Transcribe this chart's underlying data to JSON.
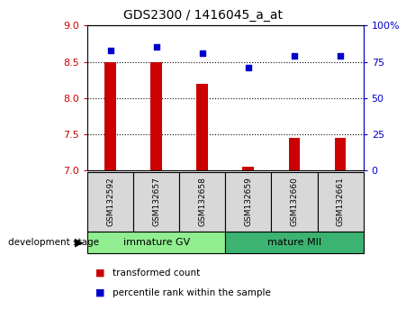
{
  "title": "GDS2300 / 1416045_a_at",
  "samples": [
    "GSM132592",
    "GSM132657",
    "GSM132658",
    "GSM132659",
    "GSM132660",
    "GSM132661"
  ],
  "transformed_counts": [
    8.5,
    8.5,
    8.2,
    7.05,
    7.45,
    7.45
  ],
  "percentile_ranks": [
    83,
    85,
    81,
    71,
    79,
    79
  ],
  "groups": [
    {
      "label": "immature GV",
      "indices": [
        0,
        1,
        2
      ],
      "color": "#90EE90"
    },
    {
      "label": "mature MII",
      "indices": [
        3,
        4,
        5
      ],
      "color": "#3CB371"
    }
  ],
  "ylim_left": [
    7.0,
    9.0
  ],
  "ylim_right": [
    0,
    100
  ],
  "yticks_left": [
    7.0,
    7.5,
    8.0,
    8.5,
    9.0
  ],
  "yticks_right": [
    0,
    25,
    50,
    75,
    100
  ],
  "bar_color": "#CC0000",
  "dot_color": "#0000CC",
  "bar_width": 0.25,
  "grid_color": "black",
  "sample_bg_color": "#D8D8D8",
  "left_tick_color": "#CC0000",
  "right_tick_color": "#0000CC",
  "legend_bar_label": "transformed count",
  "legend_dot_label": "percentile rank within the sample",
  "dev_stage_label": "development stage"
}
